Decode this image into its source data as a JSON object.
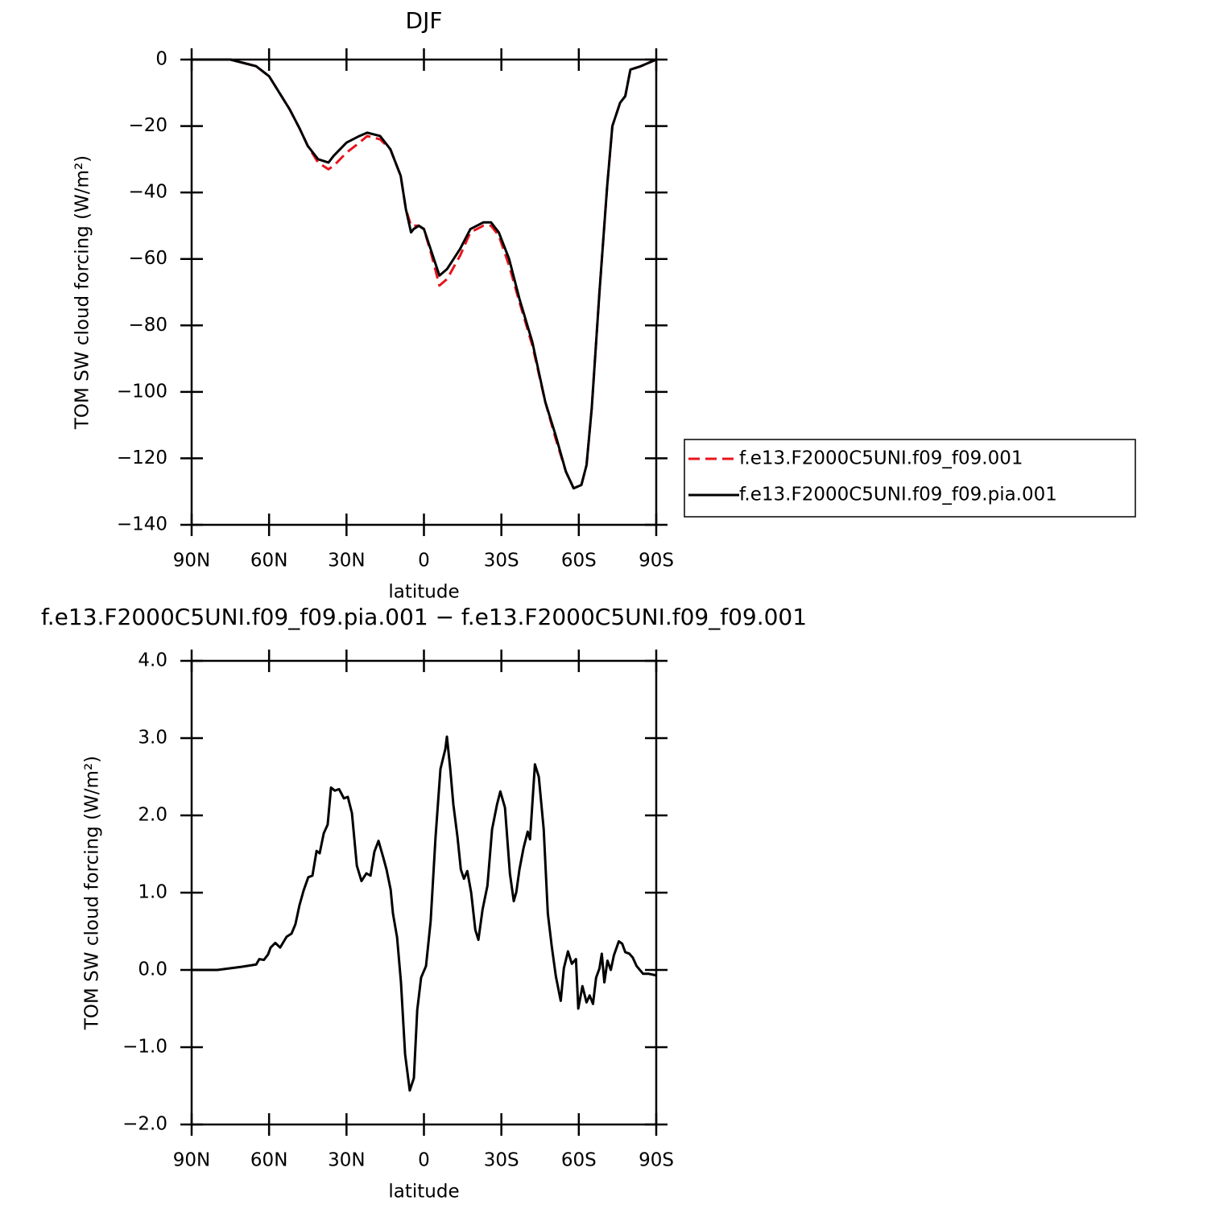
{
  "chart_data": [
    {
      "type": "line",
      "title": "DJF",
      "xlabel": "latitude",
      "ylabel": "TOM SW cloud forcing (W/m²)",
      "xlim": [
        90,
        -90
      ],
      "xticks": [
        {
          "value": 90,
          "label": "90N"
        },
        {
          "value": 60,
          "label": "60N"
        },
        {
          "value": 30,
          "label": "30N"
        },
        0,
        {
          "value": -30,
          "label": "30S"
        },
        {
          "value": -60,
          "label": "60S"
        },
        {
          "value": -90,
          "label": "90S"
        }
      ],
      "ylim": [
        -140,
        0
      ],
      "yticks": [
        0,
        {
          "value": -20,
          "label": "−20"
        },
        {
          "value": -40,
          "label": "−40"
        },
        {
          "value": -60,
          "label": "−60"
        },
        {
          "value": -80,
          "label": "−80"
        },
        {
          "value": -100,
          "label": "−100"
        },
        {
          "value": -120,
          "label": "−120"
        },
        {
          "value": -140,
          "label": "−140"
        }
      ],
      "legend": "right",
      "x": [
        90,
        80,
        75,
        70,
        65,
        60,
        56,
        52,
        48,
        45,
        41,
        37,
        35,
        30,
        25,
        22,
        17,
        13,
        9,
        7,
        5,
        4,
        2,
        0,
        -3,
        -6,
        -9,
        -14,
        -18,
        -23,
        -26,
        -29,
        -33,
        -37,
        -42,
        -47,
        -51,
        -55,
        -58,
        -61,
        -63,
        -65,
        -68,
        -71,
        -73,
        -76,
        -78,
        -80,
        -84,
        -87,
        -90
      ],
      "series": [
        {
          "name": "f.e13.F2000C5UNI.f09_f09.001",
          "color": "#e8141c",
          "dash": "dashed",
          "values": [
            0,
            0,
            0,
            -1,
            -2,
            -5,
            -10,
            -15,
            -21,
            -26,
            -31,
            -33,
            -32,
            -28,
            -25,
            -23,
            -24,
            -27,
            -35,
            -45,
            -50,
            -50,
            -50,
            -51,
            -59,
            -68,
            -66,
            -59,
            -52,
            -50,
            -50,
            -53,
            -62,
            -73,
            -86,
            -103,
            -114,
            -124,
            -129,
            -128,
            -122,
            -105,
            -70,
            -38,
            -20,
            -13,
            -11,
            -3,
            -2,
            -1,
            0
          ]
        },
        {
          "name": "f.e13.F2000C5UNI.f09_f09.pia.001",
          "color": "#000000",
          "dash": "solid",
          "values": [
            0,
            0,
            0,
            -1,
            -2,
            -5,
            -10,
            -15,
            -21,
            -26,
            -30,
            -31,
            -29,
            -25,
            -23,
            -22,
            -23,
            -27,
            -35,
            -45,
            -52,
            -51,
            -50,
            -51,
            -58,
            -65,
            -63,
            -57,
            -51,
            -49,
            -49,
            -52,
            -60,
            -72,
            -85,
            -103,
            -113,
            -124,
            -129,
            -128,
            -122,
            -105,
            -70,
            -38,
            -20,
            -13,
            -11,
            -3,
            -2,
            -1,
            0
          ]
        }
      ]
    },
    {
      "type": "line",
      "title": "f.e13.F2000C5UNI.f09_f09.pia.001 − f.e13.F2000C5UNI.f09_f09.001",
      "xlabel": "latitude",
      "ylabel": "TOM SW cloud forcing (W/m²)",
      "xlim": [
        90,
        -90
      ],
      "xticks": [
        {
          "value": 90,
          "label": "90N"
        },
        {
          "value": 60,
          "label": "60N"
        },
        {
          "value": 30,
          "label": "30N"
        },
        0,
        {
          "value": -30,
          "label": "30S"
        },
        {
          "value": -60,
          "label": "60S"
        },
        {
          "value": -90,
          "label": "90S"
        }
      ],
      "ylim": [
        -2,
        4
      ],
      "yticks": [
        {
          "value": 4,
          "label": "4.0"
        },
        {
          "value": 3,
          "label": "3.0"
        },
        {
          "value": 2,
          "label": "2.0"
        },
        {
          "value": 1,
          "label": "1.0"
        },
        {
          "value": 0,
          "label": "0.0"
        },
        {
          "value": -1,
          "label": "−1.0"
        },
        {
          "value": -2,
          "label": "−2.0"
        }
      ],
      "x": [
        90,
        80,
        70.7,
        65,
        63.8,
        62,
        60.4,
        59.4,
        57.6,
        55.7,
        53.2,
        51.3,
        49.8,
        48.2,
        46.6,
        44.8,
        43.2,
        41.6,
        40.4,
        38.8,
        37.3,
        36,
        34.5,
        32.9,
        31,
        29.5,
        27.9,
        26,
        24.2,
        22.3,
        20.7,
        19.2,
        17.6,
        15.8,
        14.5,
        12.9,
        12,
        10.4,
        8.9,
        7.3,
        5.5,
        3.9,
        2.6,
        1.1,
        -0.8,
        -2.6,
        -4.5,
        -6.4,
        -8.3,
        -8.9,
        -10.2,
        -11.4,
        -13,
        -14.3,
        -15.5,
        -16.8,
        -18.3,
        -19.9,
        -21.1,
        -22.7,
        -24.6,
        -26.4,
        -28.3,
        -29.6,
        -31.4,
        -33.3,
        -34.8,
        -35.8,
        -37,
        -38.6,
        -40.2,
        -41.1,
        -43,
        -44.5,
        -46.4,
        -48,
        -49.5,
        -51.1,
        -53,
        -54.2,
        -55.8,
        -57.3,
        -58.9,
        -59.8,
        -61.4,
        -63,
        -64.2,
        -65.5,
        -66.7,
        -68,
        -68.9,
        -69.9,
        -71.1,
        -72.4,
        -73.6,
        -75.5,
        -76.8,
        -78,
        -79.6,
        -80.9,
        -82.4,
        -84.9,
        -87.1,
        -90
      ],
      "series": [
        {
          "color": "#000000",
          "dash": "solid",
          "values": [
            0,
            0,
            0.04,
            0.07,
            0.14,
            0.13,
            0.2,
            0.29,
            0.35,
            0.29,
            0.43,
            0.47,
            0.59,
            0.84,
            1.03,
            1.2,
            1.22,
            1.54,
            1.51,
            1.77,
            1.88,
            2.36,
            2.32,
            2.34,
            2.22,
            2.24,
            2.03,
            1.35,
            1.15,
            1.25,
            1.22,
            1.53,
            1.67,
            1.46,
            1.3,
            1.04,
            0.73,
            0.42,
            -0.16,
            -1.09,
            -1.56,
            -1.4,
            -0.52,
            -0.1,
            0.05,
            0.63,
            1.72,
            2.6,
            2.86,
            3.02,
            2.6,
            2.14,
            1.72,
            1.3,
            1.18,
            1.28,
            1.0,
            0.52,
            0.39,
            0.78,
            1.09,
            1.82,
            2.14,
            2.31,
            2.1,
            1.25,
            0.89,
            1.01,
            1.3,
            1.58,
            1.79,
            1.69,
            2.66,
            2.5,
            1.82,
            0.73,
            0.31,
            -0.08,
            -0.4,
            0.02,
            0.24,
            0.08,
            0.14,
            -0.5,
            -0.21,
            -0.42,
            -0.33,
            -0.44,
            -0.1,
            0.02,
            0.21,
            -0.16,
            0.12,
            0,
            0.19,
            0.37,
            0.34,
            0.23,
            0.21,
            0.16,
            0.05,
            -0.05,
            -0.05,
            -0.07
          ]
        }
      ]
    }
  ]
}
